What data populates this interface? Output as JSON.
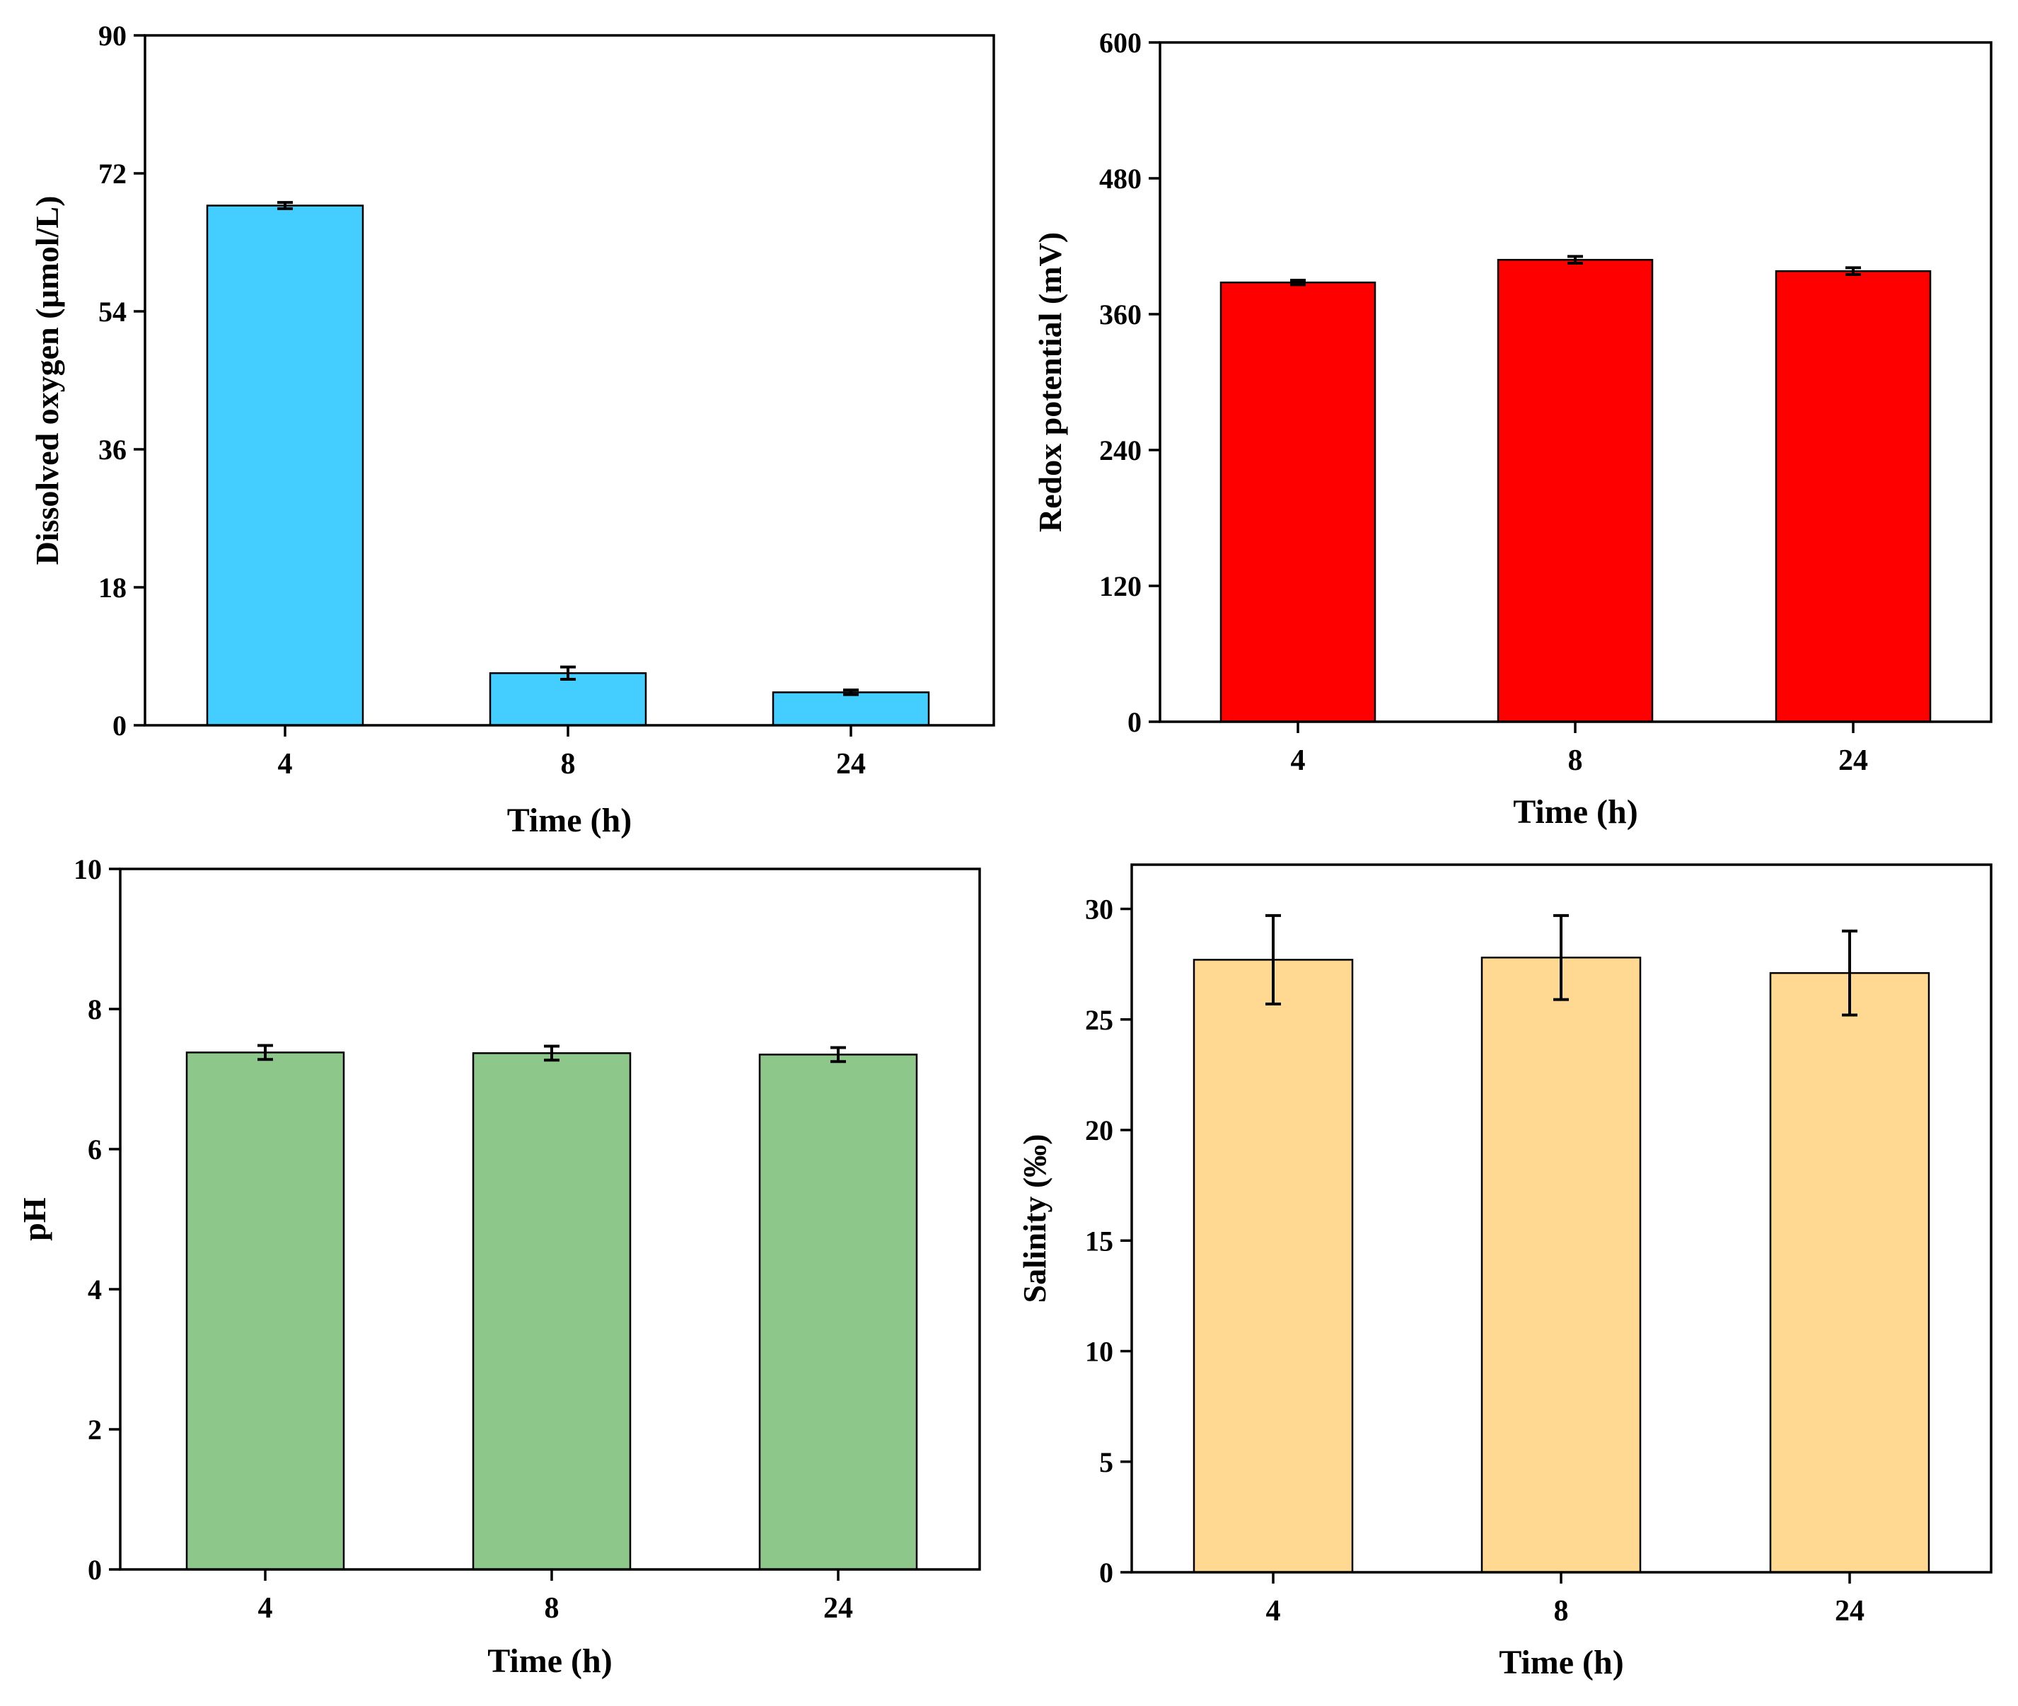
{
  "chart_data": [
    {
      "type": "bar",
      "title": "",
      "xlabel": "Time (h)",
      "ylabel": "Dissolved oxygen (μmol/L)",
      "categories": [
        "4",
        "8",
        "24"
      ],
      "values": [
        67.8,
        6.8,
        4.3
      ],
      "errors": [
        0.4,
        0.8,
        0.3
      ],
      "ylim": [
        0,
        90
      ],
      "yticks": [
        0,
        18,
        36,
        54,
        72,
        90
      ],
      "color": "#44CEFF"
    },
    {
      "type": "bar",
      "title": "",
      "xlabel": "Time (h)",
      "ylabel": "Redox potential (mV)",
      "categories": [
        "4",
        "8",
        "24"
      ],
      "values": [
        388,
        408,
        398
      ],
      "errors": [
        2,
        3,
        3
      ],
      "ylim": [
        0,
        600
      ],
      "yticks": [
        0,
        120,
        240,
        360,
        480,
        600
      ],
      "color": "#FF0000"
    },
    {
      "type": "bar",
      "title": "",
      "xlabel": "Time (h)",
      "ylabel": "pH",
      "categories": [
        "4",
        "8",
        "24"
      ],
      "values": [
        7.38,
        7.37,
        7.35
      ],
      "errors": [
        0.1,
        0.1,
        0.1
      ],
      "ylim": [
        0,
        10
      ],
      "yticks": [
        0,
        2,
        4,
        6,
        8,
        10
      ],
      "color": "#8DC88A"
    },
    {
      "type": "bar",
      "title": "",
      "xlabel": "Time (h)",
      "ylabel": "Salinity (‰)",
      "categories": [
        "4",
        "8",
        "24"
      ],
      "values": [
        27.7,
        27.8,
        27.1
      ],
      "errors": [
        2.0,
        1.9,
        1.9
      ],
      "ylim": [
        0,
        32
      ],
      "yticks": [
        0,
        5,
        10,
        15,
        20,
        25,
        30
      ],
      "color": "#FFD891"
    }
  ]
}
